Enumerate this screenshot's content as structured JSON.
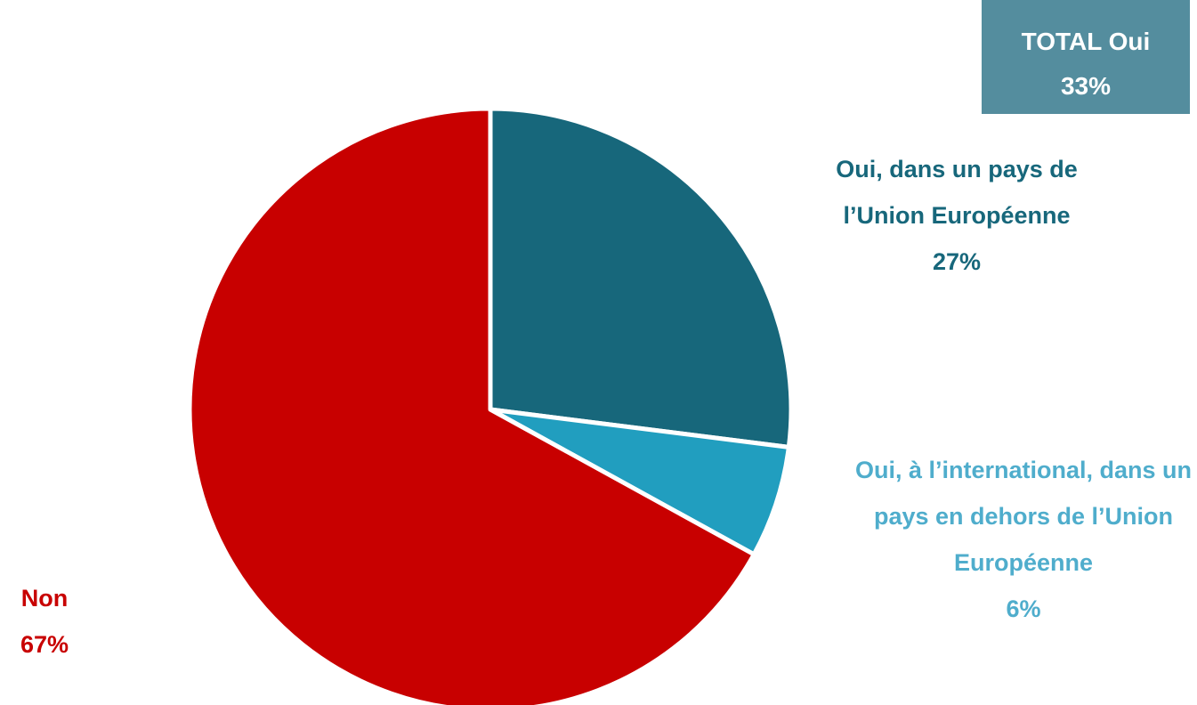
{
  "chart_data": {
    "type": "pie",
    "categories": [
      "Oui, dans un pays de l’Union Européenne",
      "Oui, à l’international, dans un pays en dehors de l’Union Européenne",
      "Non"
    ],
    "values": [
      27,
      6,
      67
    ],
    "value_labels": [
      "27%",
      "6%",
      "67%"
    ],
    "colors": [
      "#17677b",
      "#219ebf",
      "#c80000"
    ],
    "label_colors": [
      "#17677b",
      "#4fadcc",
      "#c80000"
    ],
    "annotation": {
      "text": "TOTAL Oui",
      "value_label": "33%"
    }
  }
}
